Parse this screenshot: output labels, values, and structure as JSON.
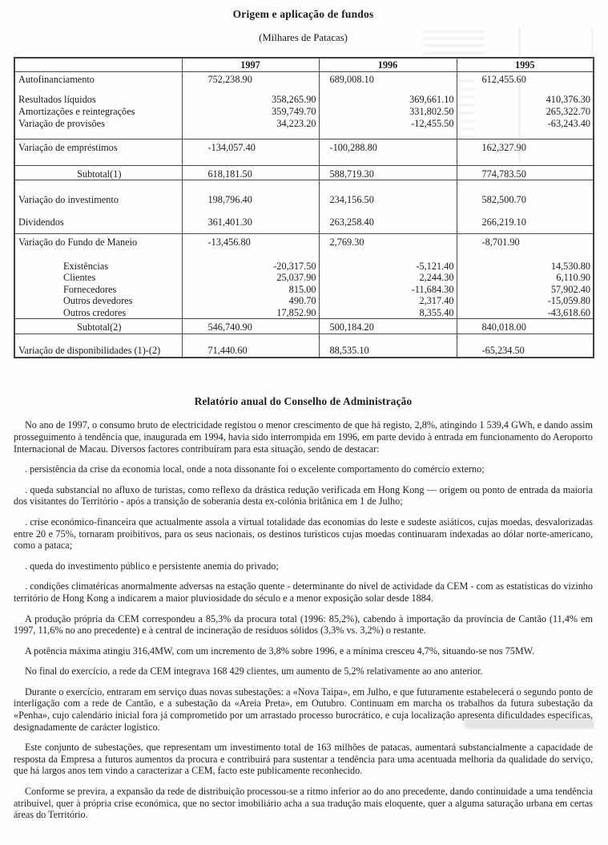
{
  "page": {
    "title": "Origem e aplicação de fundos",
    "subtitle": "(Milhares de Patacas)"
  },
  "table": {
    "columns": [
      "1997",
      "1996",
      "1995"
    ],
    "rows": [
      {
        "type": "top",
        "label": "Autofinanciamento",
        "values": [
          "752,238.90",
          "689,008.10",
          "612,455.60"
        ]
      },
      {
        "type": "detail",
        "label": "Resultados líquidos",
        "values": [
          "358,265.90",
          "369,661.10",
          "410,376.30"
        ]
      },
      {
        "type": "detail",
        "label": "Amortizações e reintegrações",
        "values": [
          "359,749.70",
          "331,802.50",
          "265,322.70"
        ]
      },
      {
        "type": "detail",
        "label": "Variação de provisões",
        "values": [
          "34,223.20",
          "-12,455.50",
          "-63,243.40"
        ]
      },
      {
        "type": "gap"
      },
      {
        "type": "main",
        "label": "Variação de empréstimos",
        "values": [
          "-134,057.40",
          "-100,288.80",
          "162,327.90"
        ]
      },
      {
        "type": "sub",
        "label": "Subtotal(1)",
        "values": [
          "618,181.50",
          "588,719.30",
          "774,783.50"
        ]
      },
      {
        "type": "gap"
      },
      {
        "type": "mid",
        "label": "Variação do investimento",
        "values": [
          "198,796.40",
          "234,156.50",
          "582,500.70"
        ]
      },
      {
        "type": "mid",
        "label": "Dividendos",
        "values": [
          "361,401.30",
          "263,258.40",
          "266,219.10"
        ]
      },
      {
        "type": "main",
        "label": "Variação do Fundo de Maneio",
        "values": [
          "-13,456.80",
          "2,769.30",
          "-8,701.90"
        ]
      },
      {
        "type": "ind",
        "label": "Existências",
        "values": [
          "-20,317.50",
          "-5,121.40",
          "14,530.80"
        ]
      },
      {
        "type": "ind",
        "label": "Clientes",
        "values": [
          "25,037.90",
          "2,244.30",
          "6,110.90"
        ]
      },
      {
        "type": "ind",
        "label": "Fornecedores",
        "values": [
          "815.00",
          "-11,684.30",
          "57,902.40"
        ]
      },
      {
        "type": "ind",
        "label": "Outros devedores",
        "values": [
          "490.70",
          "2,317.40",
          "-15,059.80"
        ]
      },
      {
        "type": "ind",
        "label": "Outros credores",
        "values": [
          "17,852.90",
          "8,355.40",
          "-43,618.60"
        ]
      },
      {
        "type": "sub",
        "label": "Subtotal(2)",
        "values": [
          "546,740.90",
          "500,184.20",
          "840,018.00"
        ]
      },
      {
        "type": "gap"
      },
      {
        "type": "last",
        "label": "Variação de disponibilidades (1)-(2)",
        "values": [
          "71,440.60",
          "88,535.10",
          "-65,234.50"
        ]
      }
    ]
  },
  "report": {
    "heading": "Relatório anual do Conselho de Administração",
    "paragraphs": [
      "No ano de 1997, o consumo bruto de electricidade registou o menor crescimento de que há registo, 2,8%, atingindo 1 539,4 GWh, e dando assim prosseguimento à tendência que, inaugurada em 1994, havia sido interrompida em 1996, em parte devido à entrada em funcionamento do Aeroporto Internacional de Macau. Diversos factores contribuíram para esta situação, sendo de destacar:",
      ". persistência da crise da economia local, onde a nota dissonante foi o excelente comportamento do comércio externo;",
      ". queda substancial no afluxo de turistas, como reflexo da drástica redução verificada em Hong Kong — origem ou ponto de entrada da maioria dos visitantes do Território - após a transição de soberania desta ex-colónia britânica em 1 de Julho;",
      ". crise económico-financeira que actualmente assola a virtual totalidade das economias do leste e sudeste asiáticos, cujas moedas, desvalorizadas entre 20 e 75%, tornaram proibitivos, para os seus nacionais, os destinos turísticos cujas moedas continuaram indexadas ao dólar norte-americano, como a pataca;",
      ". queda do investimento público e persistente anemia do privado;",
      ". condições climatéricas anormalmente adversas na estação quente - determinante do nível de actividade da CEM - com as estatísticas do vizinho território de Hong Kong a indicarem a maior pluviosidade do século e a menor exposição solar desde 1884.",
      "A produção própria da CEM correspondeu a 85,3% da procura total (1996: 85,2%), cabendo à importação da província de Cantão (11,4% em 1997, 11,6% no ano precedente) e à central de incineração de resíduos sólidos (3,3% vs. 3,2%) o restante.",
      "A potência máxima atingiu 316,4MW, com um incremento de 3,8% sobre 1996, e a mínima cresceu 4,7%, situando-se nos 75MW.",
      "No final do exercício, a rede da CEM integrava 168 429 clientes, um aumento de 5,2% relativamente ao ano anterior.",
      "Durante o exercício, entraram em serviço duas novas subestações: a «Nova Taipa», em Julho, e que futuramente estabelecerá o segundo ponto de interligação com a rede de Cantão, e a subestação da «Areia Preta», em Outubro. Continuam em marcha os trabalhos da futura subestação da «Penha», cujo calendário inicial fora já comprometido por um arrastado processo burocrático, e cuja localização apresenta dificuldades específicas, designadamente de carácter logístico.",
      "Este conjunto de subestações, que representam um investimento total de 163 milhões de patacas, aumentará substancialmente a capacidade de resposta da Empresa a futuros aumentos da procura e contribuirá para sustentar a tendência para uma acentuada melhoria da qualidade do serviço, que há largos anos tem vindo a caracterizar a CEM, facto este publicamente reconhecido.",
      "Conforme se previra, a expansão da rede de distribuição processou-se a ritmo inferior ao do ano precedente, dando continuidade a uma tendência atribuível, quer à própria crise económica, que no sector imobiliário acha a sua tradução mais eloquente, quer a alguma saturação urbana em certas áreas do Território."
    ]
  }
}
